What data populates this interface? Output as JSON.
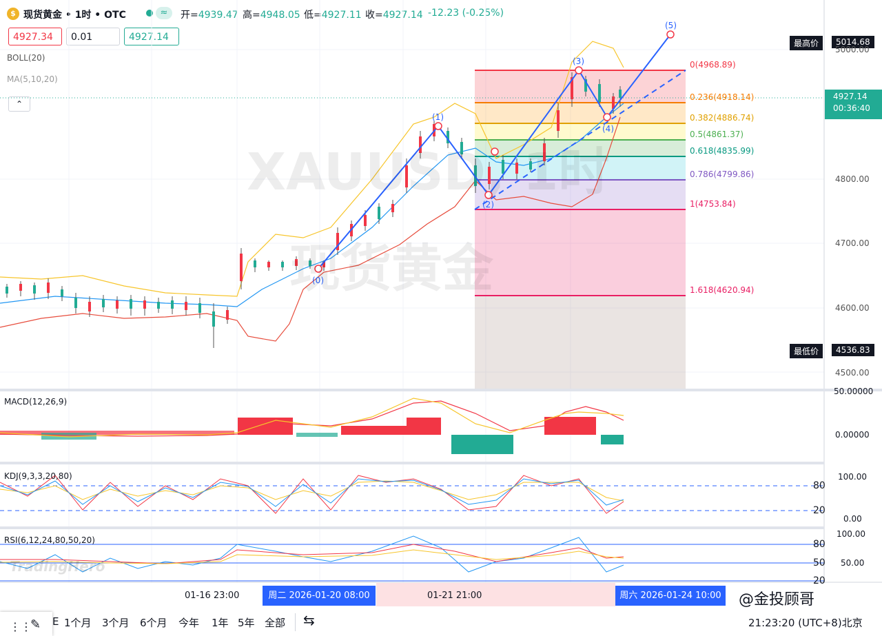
{
  "header": {
    "symbol_title": "现货黄金 • 1时 • OTC",
    "approx_symbol": "≈",
    "ohlc": [
      {
        "label": "开=",
        "value": "4939.47"
      },
      {
        "label": "高=",
        "value": "4948.05"
      },
      {
        "label": "低=",
        "value": "4927.11"
      },
      {
        "label": "收=",
        "value": "4927.14"
      }
    ],
    "change": "-12.23 (-0.25%)"
  },
  "trade": {
    "sell_price": "4927.34",
    "quantity": "0.01",
    "buy_price": "4927.14"
  },
  "indicators": {
    "boll": "BOLL(20)",
    "ma": "MA(5,10,20)",
    "macd": "MACD(12,26,9)",
    "kdj": "KDJ(9,3,3,20,80)",
    "rsi": "RSI(6,12,24,80,50,20)"
  },
  "collapse_icon": "chevron-up-icon",
  "price_axis": {
    "ticks": [
      "5000.00",
      "4800.00",
      "4700.00",
      "4600.00",
      "4500.00"
    ],
    "highest_label": "最高价",
    "highest_value": "5014.68",
    "lowest_label": "最低价",
    "lowest_value": "4536.83",
    "current_price": "4927.14",
    "countdown": "00:36:40"
  },
  "macd_axis": {
    "ticks": [
      "50.00000",
      "0.00000"
    ]
  },
  "kdj_axis": {
    "ticks": [
      "100.00",
      "0.00"
    ],
    "levels": [
      "80",
      "20"
    ]
  },
  "rsi_axis": {
    "ticks": [
      "100.00",
      "50.00"
    ],
    "levels": [
      "80",
      "50",
      "20"
    ]
  },
  "fib_levels": [
    {
      "label": "0(4968.89)",
      "color": "#f23645"
    },
    {
      "label": "0.236(4918.14)",
      "color": "#f57c00"
    },
    {
      "label": "0.382(4886.74)",
      "color": "#e0a000"
    },
    {
      "label": "0.5(4861.37)",
      "color": "#4caf50"
    },
    {
      "label": "0.618(4835.99)",
      "color": "#089981"
    },
    {
      "label": "0.786(4799.86)",
      "color": "#7e57c2"
    },
    {
      "label": "1(4753.84)",
      "color": "#e91e63"
    },
    {
      "label": "1.618(4620.94)",
      "color": "#e91e63"
    }
  ],
  "waves": [
    "(0)",
    "(1)",
    "(2)",
    "(3)",
    "(4)",
    "(5)"
  ],
  "watermark": {
    "line1": "XAUUSD, 1时",
    "line2": "现货黄金"
  },
  "time_axis": {
    "labels": [
      "01-16 23:00",
      "01-21 21:00"
    ],
    "highlight_left": "周二 2026-01-20  08:00",
    "highlight_right": "周六 2026-01-24  10:00"
  },
  "bottom_bar": {
    "ranges": [
      "1个月",
      "3个月",
      "6个月",
      "今年",
      "1年",
      "5年",
      "全部"
    ],
    "partial_left": "E",
    "clock": "21:23:20 (UTC+8)北京"
  },
  "credit": {
    "tradinghero": "TradingHero",
    "weibo": "@金投顾哥"
  },
  "colors": {
    "up": "#22ab94",
    "down": "#f23645",
    "accent": "#2962ff"
  }
}
